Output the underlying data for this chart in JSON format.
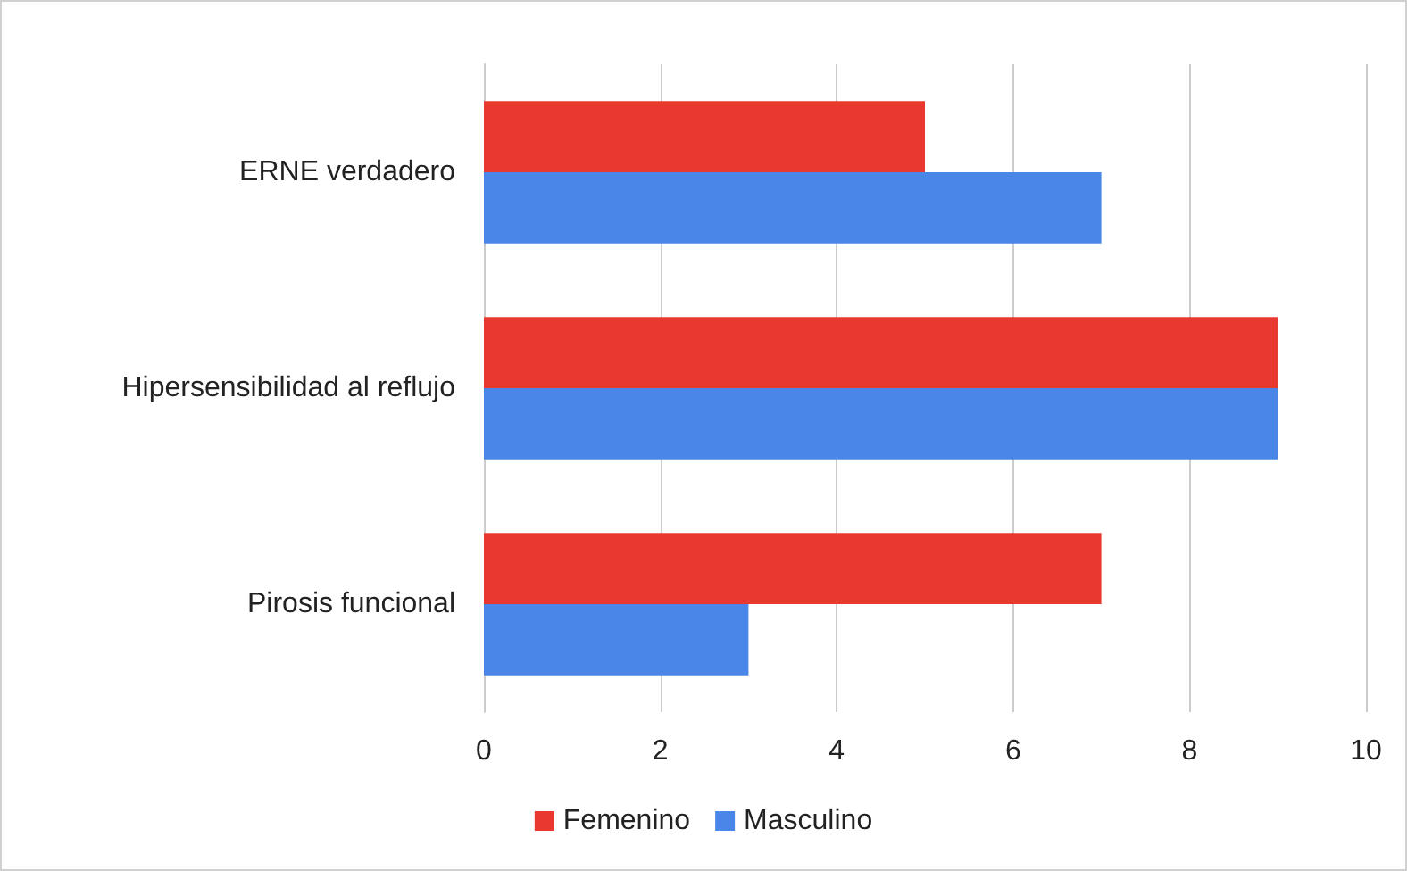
{
  "chart_data": {
    "type": "bar",
    "orientation": "horizontal",
    "categories": [
      "ERNE verdadero",
      "Hipersensibilidad al reflujo",
      "Pirosis funcional"
    ],
    "series": [
      {
        "name": "Femenino",
        "color": "#e8382f",
        "values": [
          5,
          9,
          7
        ]
      },
      {
        "name": "Masculino",
        "color": "#4a86e8",
        "values": [
          7,
          9,
          3
        ]
      }
    ],
    "xlim": [
      0,
      10
    ],
    "xticks": [
      0,
      2,
      4,
      6,
      8,
      10
    ],
    "grid": "x",
    "legend": "bottom"
  }
}
